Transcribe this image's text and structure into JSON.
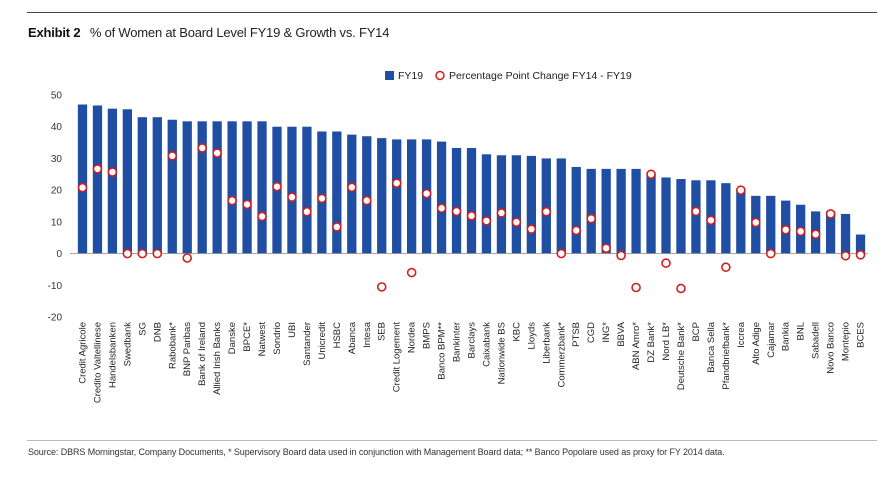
{
  "header": {
    "exhibit_label": "Exhibit 2",
    "title_text": "% of Women at Board Level FY19 & Growth vs. FY14"
  },
  "footer": {
    "source": "Source: DBRS Morningstar, Company Documents, * Supervisory Board data used in conjunction with Management Board data; ** Banco Popolare used as proxy for FY 2014 data."
  },
  "colors": {
    "bar": "#1f4ea3",
    "marker_stroke": "#d61d1d",
    "marker_fill": "#ffffff"
  },
  "chart_data": {
    "type": "bar",
    "title": "% of Women at Board Level FY19 & Growth vs. FY14",
    "xlabel": "",
    "ylabel": "",
    "ylim": [
      -20,
      50
    ],
    "yticks": [
      -20,
      -10,
      0,
      10,
      20,
      30,
      40,
      50
    ],
    "grid": false,
    "legend_position": "top",
    "categories": [
      "Credit Agricole",
      "Credito Valtellinese",
      "Handelsbanken",
      "Swedbank",
      "SG",
      "DNB",
      "Rabobank*",
      "BNP Paribas",
      "Bank of Ireland",
      "Allied Irish Banks",
      "Danske",
      "BPCE*",
      "Natwest",
      "Sondrio",
      "UBI",
      "Santander",
      "Unicredit",
      "HSBC",
      "Abanca",
      "Intesa",
      "SEB",
      "Credit Logement",
      "Nordea",
      "BMPS",
      "Banco BPM**",
      "Bankinter",
      "Barclays",
      "Caixabank",
      "Nationwide BS",
      "KBC",
      "Lloyds",
      "Liberbank",
      "Commerzbank*",
      "PTSB",
      "CGD",
      "ING*",
      "BBVA",
      "ABN Amro*",
      "DZ Bank*",
      "Nord LB*",
      "Deutsche Bank*",
      "BCP",
      "Banca Sella",
      "Pfandbriefbank*",
      "Iccrea",
      "Alto Adige",
      "Cajamar",
      "Bankia",
      "BNL",
      "Sabadell",
      "Novo Banco",
      "Montepio",
      "BCES"
    ],
    "series": [
      {
        "name": "FY19",
        "kind": "bar",
        "values": [
          47.0,
          46.7,
          45.7,
          45.5,
          43.0,
          43.0,
          42.2,
          41.7,
          41.7,
          41.7,
          41.7,
          41.7,
          41.7,
          40.0,
          40.0,
          40.0,
          38.5,
          38.5,
          37.5,
          37.0,
          36.4,
          36.0,
          36.0,
          36.0,
          35.3,
          33.3,
          33.3,
          31.3,
          31.0,
          31.0,
          30.8,
          30.0,
          30.0,
          27.3,
          26.7,
          26.7,
          26.7,
          26.7,
          25.0,
          24.0,
          23.5,
          23.1,
          23.1,
          22.2,
          20.0,
          18.2,
          18.2,
          16.7,
          15.4,
          13.3,
          13.3,
          12.5,
          6.0
        ]
      },
      {
        "name": "Percentage Point Change FY14 - FY19",
        "kind": "marker",
        "values": [
          20.8,
          26.7,
          25.7,
          0.0,
          0.0,
          0.0,
          30.8,
          -1.4,
          33.3,
          31.7,
          16.7,
          15.5,
          11.7,
          21.1,
          17.8,
          13.2,
          17.4,
          8.4,
          20.9,
          16.7,
          -10.5,
          22.2,
          -6.0,
          18.9,
          14.3,
          13.3,
          11.9,
          10.3,
          12.8,
          9.9,
          7.7,
          13.2,
          0.0,
          7.3,
          11.0,
          1.7,
          -0.6,
          -10.7,
          25.0,
          -3.0,
          -11.0,
          13.3,
          10.5,
          -4.3,
          20.0,
          9.8,
          0.0,
          7.5,
          7.0,
          6.1,
          12.5,
          -0.7,
          -0.4
        ]
      }
    ]
  }
}
